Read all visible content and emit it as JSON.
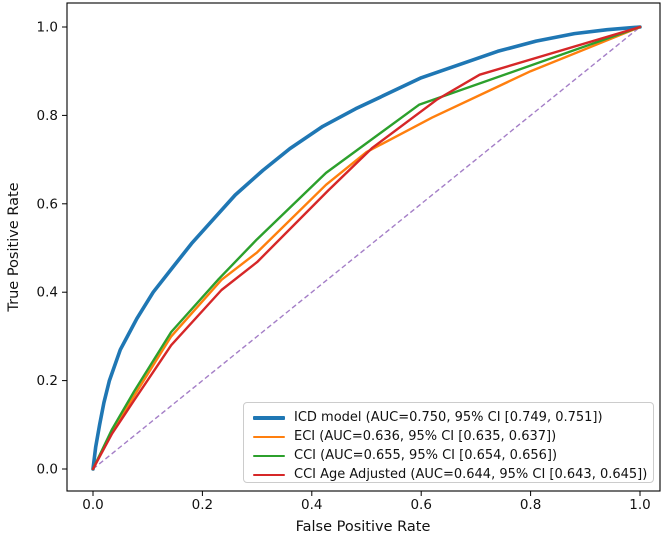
{
  "chart_data": {
    "type": "line",
    "title": "",
    "xlabel": "False Positive Rate",
    "ylabel": "True Positive Rate",
    "xlim": [
      -0.05,
      1.05
    ],
    "ylim": [
      -0.05,
      1.05
    ],
    "xticks": [
      "0.0",
      "0.2",
      "0.4",
      "0.6",
      "0.8",
      "1.0"
    ],
    "yticks": [
      "0.0",
      "0.2",
      "0.4",
      "0.6",
      "0.8",
      "1.0"
    ],
    "grid": false,
    "legend_position": "lower right",
    "reference_line": {
      "name": "chance-diagonal",
      "color": "#9467bd",
      "style": "dashed",
      "x": [
        0,
        1
      ],
      "y": [
        0,
        1
      ]
    },
    "series": [
      {
        "name": "ICD model",
        "label": "ICD model (AUC=0.750, 95% CI [0.749, 0.751])",
        "color": "#1f77b4",
        "linewidth": 3.6,
        "auc": 0.75,
        "ci": [
          0.749,
          0.751
        ],
        "x": [
          0,
          0.005,
          0.012,
          0.02,
          0.03,
          0.05,
          0.08,
          0.11,
          0.145,
          0.18,
          0.22,
          0.26,
          0.31,
          0.36,
          0.42,
          0.48,
          0.54,
          0.6,
          0.67,
          0.74,
          0.81,
          0.88,
          0.94,
          1.0
        ],
        "y": [
          0,
          0.05,
          0.1,
          0.15,
          0.2,
          0.27,
          0.34,
          0.4,
          0.455,
          0.51,
          0.565,
          0.62,
          0.675,
          0.725,
          0.775,
          0.815,
          0.85,
          0.885,
          0.915,
          0.945,
          0.968,
          0.985,
          0.994,
          1.0
        ]
      },
      {
        "name": "ECI",
        "label": "ECI (AUC=0.636, 95% CI [0.635, 0.637])",
        "color": "#ff7f0e",
        "linewidth": 2.4,
        "auc": 0.636,
        "ci": [
          0.635,
          0.637
        ],
        "x": [
          0,
          0.035,
          0.075,
          0.143,
          0.235,
          0.3,
          0.426,
          0.5,
          0.62,
          0.8,
          1.0
        ],
        "y": [
          0,
          0.085,
          0.165,
          0.3,
          0.428,
          0.49,
          0.643,
          0.717,
          0.795,
          0.9,
          1.0
        ]
      },
      {
        "name": "CCI",
        "label": "CCI (AUC=0.655, 95% CI [0.654, 0.656])",
        "color": "#2ca02c",
        "linewidth": 2.4,
        "auc": 0.655,
        "ci": [
          0.654,
          0.656
        ],
        "x": [
          0,
          0.035,
          0.075,
          0.143,
          0.23,
          0.3,
          0.426,
          0.596,
          1.0
        ],
        "y": [
          0,
          0.09,
          0.175,
          0.31,
          0.43,
          0.52,
          0.67,
          0.824,
          1.0
        ]
      },
      {
        "name": "CCI Age Adjusted",
        "label": "CCI Age Adjusted (AUC=0.644, 95% CI [0.643, 0.645])",
        "color": "#d62728",
        "linewidth": 2.4,
        "auc": 0.644,
        "ci": [
          0.643,
          0.645
        ],
        "x": [
          0,
          0.035,
          0.075,
          0.143,
          0.235,
          0.3,
          0.43,
          0.51,
          0.628,
          0.707,
          1.0
        ],
        "y": [
          0,
          0.08,
          0.155,
          0.28,
          0.405,
          0.468,
          0.63,
          0.726,
          0.835,
          0.892,
          1.0
        ]
      }
    ]
  }
}
